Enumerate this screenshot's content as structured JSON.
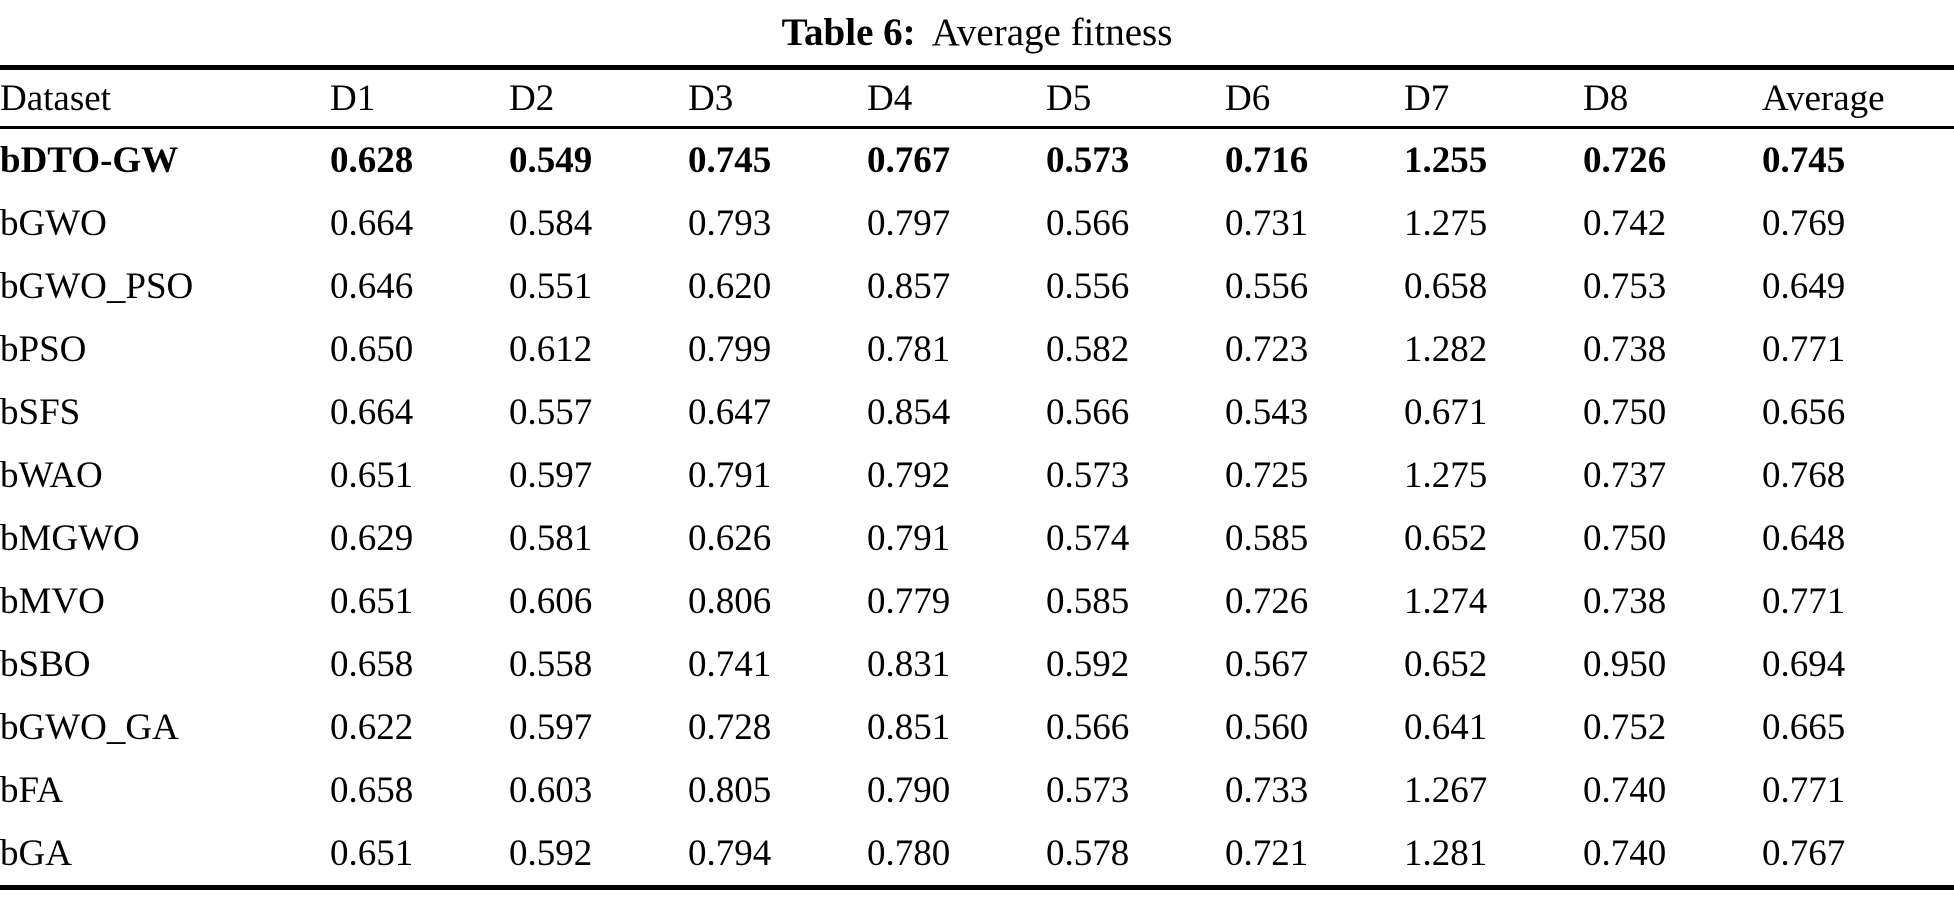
{
  "caption": {
    "label": "Table 6:",
    "text": "Average fitness"
  },
  "colors": {
    "background": "#ffffff",
    "text": "#000000",
    "rule": "#000000"
  },
  "table": {
    "columns": [
      "Dataset",
      "D1",
      "D2",
      "D3",
      "D4",
      "D5",
      "D6",
      "D7",
      "D8",
      "Average"
    ],
    "rows": [
      {
        "dataset": "bDTO-GW",
        "bold": true,
        "values": [
          "0.628",
          "0.549",
          "0.745",
          "0.767",
          "0.573",
          "0.716",
          "1.255",
          "0.726",
          "0.745"
        ]
      },
      {
        "dataset": "bGWO",
        "bold": false,
        "values": [
          "0.664",
          "0.584",
          "0.793",
          "0.797",
          "0.566",
          "0.731",
          "1.275",
          "0.742",
          "0.769"
        ]
      },
      {
        "dataset": "bGWO_PSO",
        "bold": false,
        "values": [
          "0.646",
          "0.551",
          "0.620",
          "0.857",
          "0.556",
          "0.556",
          "0.658",
          "0.753",
          "0.649"
        ]
      },
      {
        "dataset": "bPSO",
        "bold": false,
        "values": [
          "0.650",
          "0.612",
          "0.799",
          "0.781",
          "0.582",
          "0.723",
          "1.282",
          "0.738",
          "0.771"
        ]
      },
      {
        "dataset": "bSFS",
        "bold": false,
        "values": [
          "0.664",
          "0.557",
          "0.647",
          "0.854",
          "0.566",
          "0.543",
          "0.671",
          "0.750",
          "0.656"
        ]
      },
      {
        "dataset": "bWAO",
        "bold": false,
        "values": [
          "0.651",
          "0.597",
          "0.791",
          "0.792",
          "0.573",
          "0.725",
          "1.275",
          "0.737",
          "0.768"
        ]
      },
      {
        "dataset": "bMGWO",
        "bold": false,
        "values": [
          "0.629",
          "0.581",
          "0.626",
          "0.791",
          "0.574",
          "0.585",
          "0.652",
          "0.750",
          "0.648"
        ]
      },
      {
        "dataset": "bMVO",
        "bold": false,
        "values": [
          "0.651",
          "0.606",
          "0.806",
          "0.779",
          "0.585",
          "0.726",
          "1.274",
          "0.738",
          "0.771"
        ]
      },
      {
        "dataset": "bSBO",
        "bold": false,
        "values": [
          "0.658",
          "0.558",
          "0.741",
          "0.831",
          "0.592",
          "0.567",
          "0.652",
          "0.950",
          "0.694"
        ]
      },
      {
        "dataset": "bGWO_GA",
        "bold": false,
        "values": [
          "0.622",
          "0.597",
          "0.728",
          "0.851",
          "0.566",
          "0.560",
          "0.641",
          "0.752",
          "0.665"
        ]
      },
      {
        "dataset": "bFA",
        "bold": false,
        "values": [
          "0.658",
          "0.603",
          "0.805",
          "0.790",
          "0.573",
          "0.733",
          "1.267",
          "0.740",
          "0.771"
        ]
      },
      {
        "dataset": "bGA",
        "bold": false,
        "values": [
          "0.651",
          "0.592",
          "0.794",
          "0.780",
          "0.578",
          "0.721",
          "1.281",
          "0.740",
          "0.767"
        ]
      }
    ]
  },
  "chart_data": {
    "type": "table",
    "title": "Table 6: Average fitness",
    "columns": [
      "Dataset",
      "D1",
      "D2",
      "D3",
      "D4",
      "D5",
      "D6",
      "D7",
      "D8",
      "Average"
    ],
    "rows": [
      [
        "bDTO-GW",
        0.628,
        0.549,
        0.745,
        0.767,
        0.573,
        0.716,
        1.255,
        0.726,
        0.745
      ],
      [
        "bGWO",
        0.664,
        0.584,
        0.793,
        0.797,
        0.566,
        0.731,
        1.275,
        0.742,
        0.769
      ],
      [
        "bGWO_PSO",
        0.646,
        0.551,
        0.62,
        0.857,
        0.556,
        0.556,
        0.658,
        0.753,
        0.649
      ],
      [
        "bPSO",
        0.65,
        0.612,
        0.799,
        0.781,
        0.582,
        0.723,
        1.282,
        0.738,
        0.771
      ],
      [
        "bSFS",
        0.664,
        0.557,
        0.647,
        0.854,
        0.566,
        0.543,
        0.671,
        0.75,
        0.656
      ],
      [
        "bWAO",
        0.651,
        0.597,
        0.791,
        0.792,
        0.573,
        0.725,
        1.275,
        0.737,
        0.768
      ],
      [
        "bMGWO",
        0.629,
        0.581,
        0.626,
        0.791,
        0.574,
        0.585,
        0.652,
        0.75,
        0.648
      ],
      [
        "bMVO",
        0.651,
        0.606,
        0.806,
        0.779,
        0.585,
        0.726,
        1.274,
        0.738,
        0.771
      ],
      [
        "bSBO",
        0.658,
        0.558,
        0.741,
        0.831,
        0.592,
        0.567,
        0.652,
        0.95,
        0.694
      ],
      [
        "bGWO_GA",
        0.622,
        0.597,
        0.728,
        0.851,
        0.566,
        0.56,
        0.641,
        0.752,
        0.665
      ],
      [
        "bFA",
        0.658,
        0.603,
        0.805,
        0.79,
        0.573,
        0.733,
        1.267,
        0.74,
        0.771
      ],
      [
        "bGA",
        0.651,
        0.592,
        0.794,
        0.78,
        0.578,
        0.721,
        1.281,
        0.74,
        0.767
      ]
    ]
  }
}
